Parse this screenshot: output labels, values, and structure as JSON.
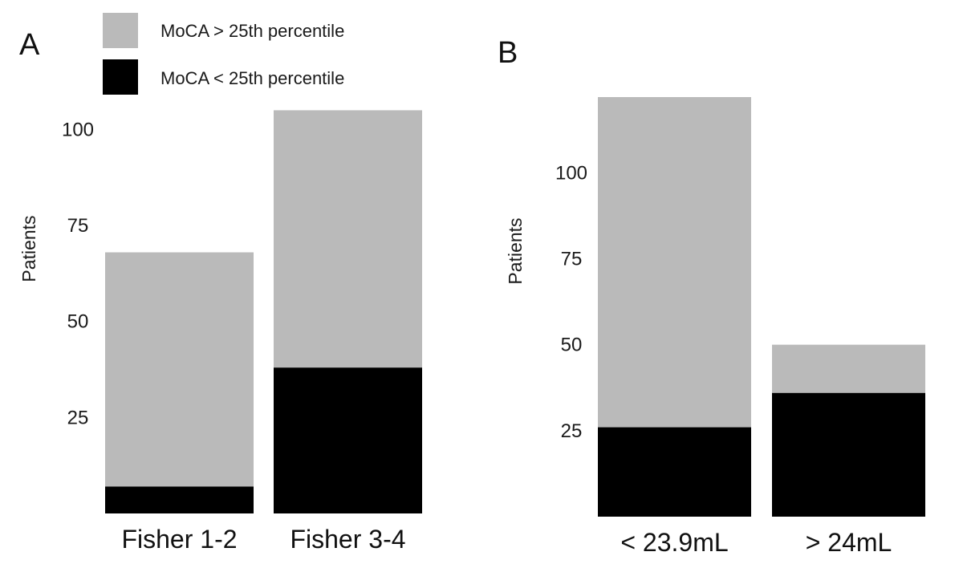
{
  "colors": {
    "above": "#bababa",
    "below": "#000000",
    "background": "#ffffff"
  },
  "legend": {
    "items": [
      {
        "label": "MoCA > 25th percentile",
        "color": "#bababa"
      },
      {
        "label": "MoCA < 25th percentile",
        "color": "#000000"
      }
    ]
  },
  "chart_data": [
    {
      "type": "bar",
      "stacked": true,
      "panel": "A",
      "title": "",
      "xlabel": "",
      "ylabel": "Patients",
      "ylim": [
        0,
        103
      ],
      "yticks": [
        25,
        50,
        75,
        100
      ],
      "categories": [
        "Fisher 1-2",
        "Fisher 3-4"
      ],
      "series": [
        {
          "name": "MoCA < 25th percentile",
          "values": [
            7,
            38
          ]
        },
        {
          "name": "MoCA > 25th percentile",
          "values": [
            61,
            67
          ]
        }
      ],
      "legend": "top-left"
    },
    {
      "type": "bar",
      "stacked": true,
      "panel": "B",
      "title": "",
      "xlabel": "",
      "ylabel": "Patients",
      "ylim": [
        0,
        122
      ],
      "yticks": [
        25,
        50,
        75,
        100
      ],
      "categories": [
        "< 23.9mL",
        "> 24mL"
      ],
      "series": [
        {
          "name": "MoCA < 25th percentile",
          "values": [
            26,
            36
          ]
        },
        {
          "name": "MoCA > 25th percentile",
          "values": [
            96,
            14
          ]
        }
      ]
    }
  ]
}
